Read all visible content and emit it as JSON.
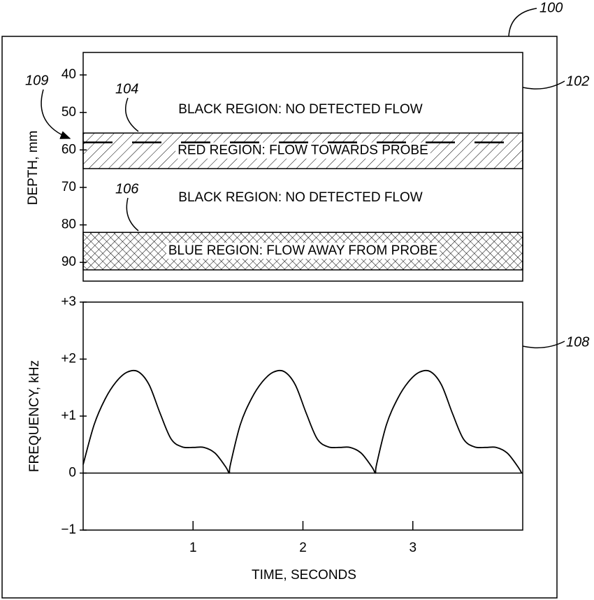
{
  "figure_label": "100",
  "chart_data": [
    {
      "type": "bands",
      "ylabel": "DEPTH, mm",
      "ylim": [
        34,
        95
      ],
      "yticks": [
        40,
        50,
        60,
        70,
        80,
        90
      ],
      "reversed": true,
      "annotation": "102",
      "black_regions": [
        "BLACK REGION: NO DETECTED FLOW",
        "BLACK REGION: NO DETECTED FLOW"
      ],
      "bands": [
        {
          "label": "RED REGION: FLOW TOWARDS PROBE",
          "range": [
            55.5,
            65
          ],
          "fill": "hatch",
          "annotation": "104"
        },
        {
          "label": "BLUE REGION: FLOW AWAY FROM PROBE",
          "range": [
            82,
            92
          ],
          "fill": "crosshatch",
          "annotation": "106"
        }
      ],
      "reference_depth": 58,
      "reference_annotation": "109"
    },
    {
      "type": "line",
      "xlabel": "TIME, SECONDS",
      "ylabel": "FREQUENCY, kHz",
      "annotation": "108",
      "xlim": [
        0,
        4
      ],
      "xticks": [
        1,
        2,
        3
      ],
      "ylim": [
        -1,
        3
      ],
      "yticks": [
        {
          "value": -1,
          "label": "−1"
        },
        0,
        {
          "value": 1,
          "label": "+1"
        },
        {
          "value": 2,
          "label": "+2"
        },
        {
          "value": 3,
          "label": "+3"
        }
      ],
      "color": "#000000",
      "x": [
        0,
        0.1,
        0.2,
        0.3,
        0.4,
        0.5,
        0.6,
        0.7,
        0.8,
        0.9,
        1.0,
        1.1,
        1.2,
        1.3,
        1.33,
        1.34,
        1.43,
        1.53,
        1.63,
        1.73,
        1.83,
        1.93,
        2.03,
        2.13,
        2.23,
        2.33,
        2.43,
        2.53,
        2.63,
        2.66,
        2.67,
        2.76,
        2.86,
        2.96,
        3.06,
        3.16,
        3.26,
        3.36,
        3.46,
        3.56,
        3.66,
        3.76,
        3.86,
        3.96,
        3.99
      ],
      "values": [
        0.15,
        0.85,
        1.3,
        1.6,
        1.77,
        1.78,
        1.55,
        1.05,
        0.6,
        0.46,
        0.45,
        0.45,
        0.35,
        0.1,
        0,
        0.15,
        0.85,
        1.3,
        1.6,
        1.77,
        1.78,
        1.55,
        1.05,
        0.6,
        0.46,
        0.45,
        0.45,
        0.35,
        0.1,
        0,
        0.15,
        0.85,
        1.3,
        1.6,
        1.77,
        1.78,
        1.55,
        1.05,
        0.6,
        0.46,
        0.45,
        0.45,
        0.35,
        0.1,
        0
      ]
    }
  ]
}
